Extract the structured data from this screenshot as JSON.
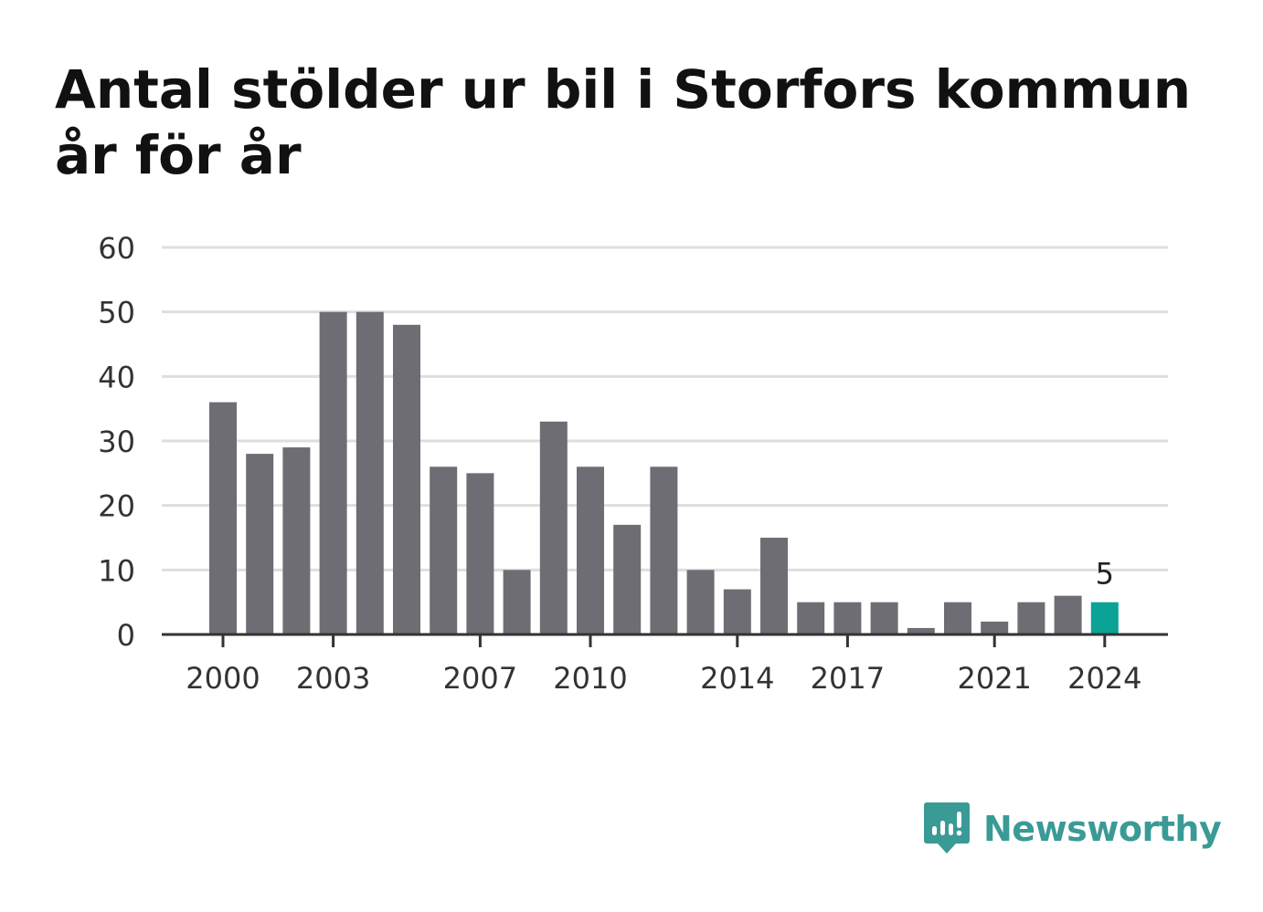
{
  "title": "Antal stölder ur bil i Storfors kommun år för år",
  "brand": {
    "name": "Newsworthy",
    "icon": "newsworthy-logo-icon",
    "color": "#3a9a96"
  },
  "chart_data": {
    "type": "bar",
    "title": "Antal stölder ur bil i Storfors kommun år för år",
    "xlabel": "",
    "ylabel": "",
    "ylim": [
      0,
      60
    ],
    "yticks": [
      0,
      10,
      20,
      30,
      40,
      50,
      60
    ],
    "grid": true,
    "categories": [
      2000,
      2001,
      2002,
      2003,
      2004,
      2005,
      2006,
      2007,
      2008,
      2009,
      2010,
      2011,
      2012,
      2013,
      2014,
      2015,
      2016,
      2017,
      2018,
      2019,
      2020,
      2021,
      2022,
      2023,
      2024
    ],
    "xtick_labels": [
      "2000",
      "2003",
      "2007",
      "2010",
      "2014",
      "2017",
      "2021",
      "2024"
    ],
    "values": [
      36,
      28,
      29,
      50,
      50,
      48,
      26,
      25,
      10,
      33,
      26,
      17,
      26,
      10,
      7,
      15,
      5,
      5,
      5,
      1,
      5,
      2,
      5,
      6,
      5
    ],
    "highlight": {
      "category": 2024,
      "label": "5"
    },
    "colors": {
      "bar": "#6e6d73",
      "highlight": "#0aa396",
      "grid": "#dedede",
      "axis": "#333333"
    }
  }
}
